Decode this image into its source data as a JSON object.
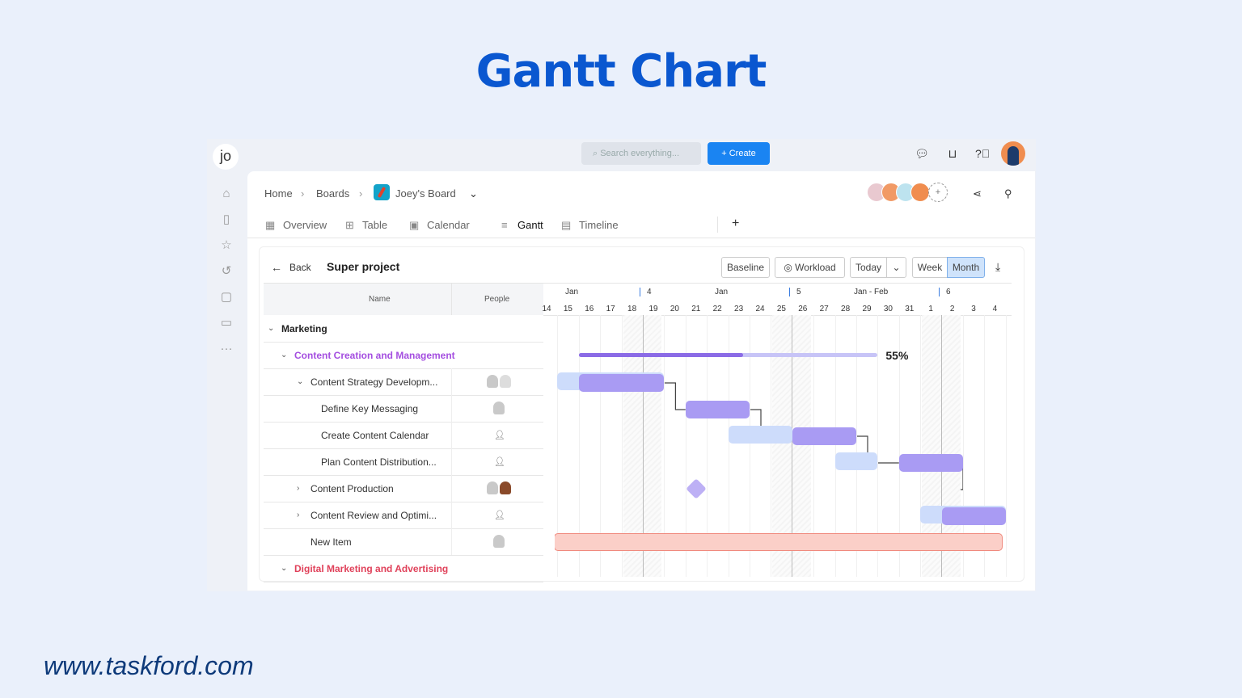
{
  "page": {
    "title": "Gantt Chart",
    "website": "www.taskford.com"
  },
  "topbar": {
    "workspace_avatar": "jo",
    "search_placeholder": "Search everything...",
    "create_label": "Create",
    "icons": [
      "chat-icon",
      "inbox-icon",
      "help-icon"
    ]
  },
  "sidebar": {
    "icons": [
      "home-icon",
      "document-icon",
      "star-icon",
      "history-icon",
      "board-icon",
      "folder-icon",
      "more-icon"
    ]
  },
  "breadcrumb": {
    "home": "Home",
    "boards": "Boards",
    "board": "Joey's Board"
  },
  "tabs": [
    {
      "label": "Overview",
      "icon": "grid-icon"
    },
    {
      "label": "Table",
      "icon": "table-icon"
    },
    {
      "label": "Calendar",
      "icon": "calendar-icon"
    },
    {
      "label": "Gantt",
      "icon": "gantt-icon",
      "active": true
    },
    {
      "label": "Timeline",
      "icon": "timeline-icon"
    }
  ],
  "toolbar": {
    "back": "Back",
    "project": "Super project",
    "baseline": "Baseline",
    "workload": "Workload",
    "today": "Today",
    "week": "Week",
    "month": "Month",
    "selected_scale": "Month"
  },
  "table": {
    "headers": {
      "name": "Name",
      "people": "People"
    },
    "rows": [
      {
        "label": "Marketing",
        "level": 0,
        "expanded": true,
        "kind": "group",
        "color": "#222222",
        "people": ""
      },
      {
        "label": "Content Creation and Management",
        "level": 1,
        "expanded": true,
        "kind": "group",
        "color": "#a44ee0",
        "people": ""
      },
      {
        "label": "Content Strategy Developm...",
        "level": 2,
        "expanded": true,
        "people": "two"
      },
      {
        "label": "Define Key Messaging",
        "level": 3,
        "people": "one"
      },
      {
        "label": "Create Content Calendar",
        "level": 3,
        "people": "none"
      },
      {
        "label": "Plan Content Distribution...",
        "level": 3,
        "people": "none"
      },
      {
        "label": "Content Production",
        "level": 2,
        "expanded": false,
        "people": "two"
      },
      {
        "label": "Content Review and Optimi...",
        "level": 2,
        "expanded": false,
        "people": "none"
      },
      {
        "label": "New Item",
        "level": 2,
        "people": "one"
      },
      {
        "label": "Digital Marketing and Advertising",
        "level": 1,
        "expanded": true,
        "kind": "group",
        "color": "#e0415a",
        "people": ""
      }
    ]
  },
  "timeline": {
    "months": [
      {
        "label": "Jan"
      },
      {
        "label": "4",
        "week": true
      },
      {
        "label": "Jan"
      },
      {
        "label": "5",
        "week": true
      },
      {
        "label": "Jan - Feb"
      },
      {
        "label": "6",
        "week": true
      }
    ],
    "days": [
      "14",
      "15",
      "16",
      "17",
      "18",
      "19",
      "20",
      "21",
      "22",
      "23",
      "24",
      "25",
      "26",
      "27",
      "28",
      "29",
      "30",
      "31",
      "1",
      "2",
      "3",
      "4"
    ],
    "weekends": [
      [
        "18",
        "19"
      ],
      [
        "25",
        "26"
      ],
      [
        "1",
        "2"
      ]
    ],
    "bars": [
      {
        "row": 1,
        "type": "progress",
        "start": "16",
        "end": "29",
        "progress": "55%"
      },
      {
        "row": 2,
        "baseline": [
          "15",
          "19"
        ],
        "actual": [
          "16",
          "19"
        ]
      },
      {
        "row": 3,
        "actual": [
          "21",
          "23"
        ]
      },
      {
        "row": 4,
        "baseline": [
          "23",
          "25"
        ],
        "actual": [
          "26",
          "28"
        ]
      },
      {
        "row": 5,
        "baseline": [
          "28",
          "29"
        ],
        "actual": [
          "31",
          "2"
        ]
      },
      {
        "row": 6,
        "type": "milestone",
        "date": "21"
      },
      {
        "row": 7,
        "baseline": [
          "1",
          "4"
        ],
        "actual": [
          "2",
          "4"
        ]
      },
      {
        "row": 8,
        "type": "red",
        "start": "15",
        "end": "4"
      }
    ],
    "colors": {
      "actual": "#a99bf3",
      "baseline": "#cddcfb",
      "progress": "#8b6be6",
      "progress_track": "#c7c4f7",
      "red": "#fbcfc8",
      "red_border": "#f08a7e",
      "milestone": "#bdb0f5"
    }
  }
}
